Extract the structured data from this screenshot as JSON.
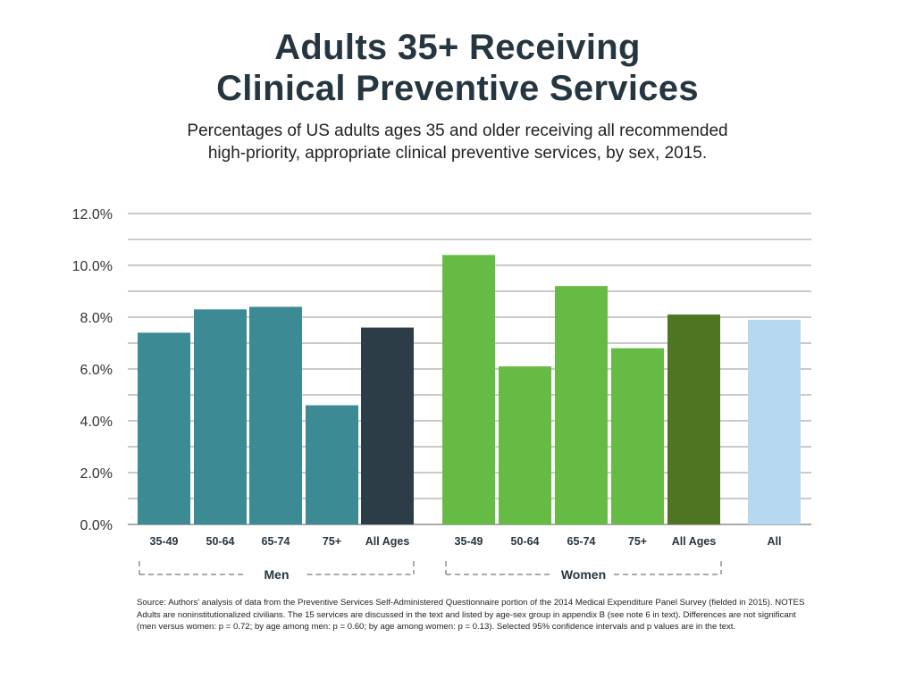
{
  "title_line1": "Adults 35+ Receiving",
  "title_line2": "Clinical Preventive Services",
  "subtitle_line1": "Percentages of US adults ages 35 and older receiving all recommended",
  "subtitle_line2": "high-priority, appropriate clinical preventive services, by sex, 2015.",
  "source": "Source: Authors' analysis of data from the Preventive Services Self-Administered Questionnaire portion of the 2014 Medical Expenditure Panel Survey (fielded in 2015). NOTES Adults are noninstitutionalized civilians. The 15 services are discussed in the text and listed by age-sex group in appendix B (see note 6 in text). Differences are not significant (men versus women: p = 0.72; by age among men: p = 0.60; by age among women: p = 0.13). Selected 95% confidence intervals and p values are in the text.",
  "colors": {
    "men_age": "#3b8a94",
    "men_all": "#2c3d47",
    "women_age": "#66bb44",
    "women_all": "#4e7622",
    "overall": "#b7d9f0",
    "grid": "#aaaaaa"
  },
  "chart_data": {
    "type": "bar",
    "ylim": [
      0,
      12
    ],
    "yticks": [
      "0.0%",
      "2.0%",
      "4.0%",
      "6.0%",
      "8.0%",
      "10.0%",
      "12.0%"
    ],
    "grid": true,
    "groups": [
      {
        "name": "Men",
        "categories": [
          "35-49",
          "50-64",
          "65-74",
          "75+",
          "All Ages"
        ],
        "values": [
          7.4,
          8.3,
          8.4,
          4.6,
          7.6
        ]
      },
      {
        "name": "Women",
        "categories": [
          "35-49",
          "50-64",
          "65-74",
          "75+",
          "All Ages"
        ],
        "values": [
          10.4,
          6.1,
          9.2,
          6.8,
          8.1
        ]
      },
      {
        "name": "",
        "categories": [
          "All"
        ],
        "values": [
          7.9
        ]
      }
    ]
  }
}
